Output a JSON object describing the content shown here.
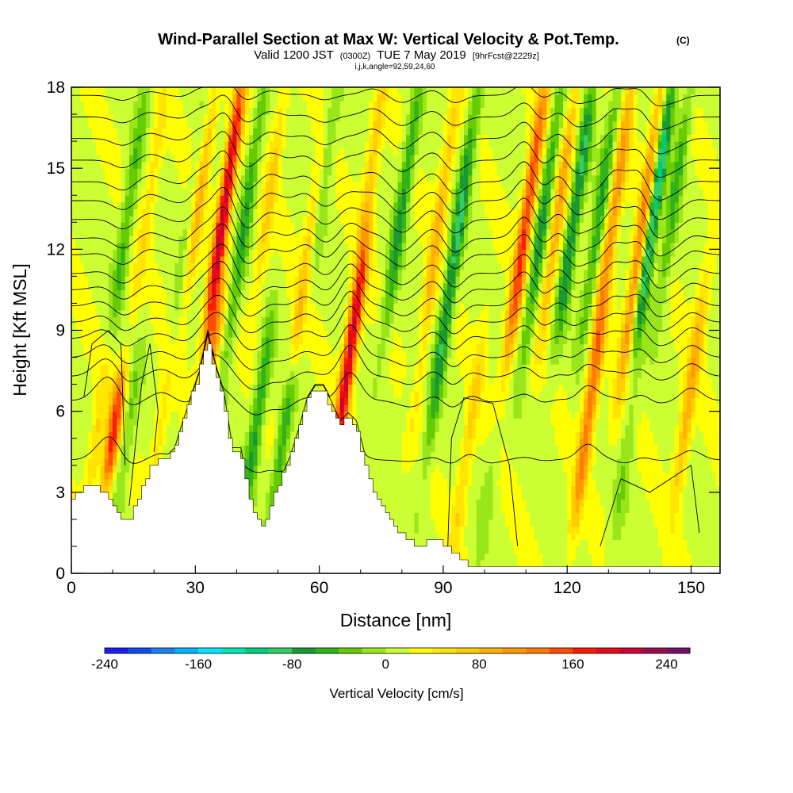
{
  "chart_data": {
    "type": "heatmap",
    "title": "Wind-Parallel Section at Max W: Vertical Velocity & Pot.Temp.",
    "title_mark": "(C)",
    "subtitle_prefix": "Valid 1200 JST",
    "subtitle_zulu": "(0300Z)",
    "subtitle_date": "TUE 7 May 2019",
    "subtitle_forecast": "[9hrFcst@2229z]",
    "grid_info": "i,j,k,angle=92,59,24,60",
    "xlabel": "Distance [nm]",
    "ylabel": "Height [Kft MSL]",
    "xlim": [
      0,
      157
    ],
    "ylim": [
      0,
      18
    ],
    "x_ticks": [
      0,
      30,
      60,
      90,
      120,
      150
    ],
    "y_ticks": [
      0,
      3,
      6,
      9,
      12,
      15,
      18
    ],
    "x_tick_labels": [
      "0",
      "30",
      "60",
      "90",
      "120",
      "150"
    ],
    "y_tick_labels": [
      "0",
      "3",
      "6",
      "9",
      "12",
      "15",
      "18"
    ],
    "colorbar": {
      "label": "Vertical Velocity [cm/s]",
      "min": -240,
      "max": 260,
      "step": 20,
      "tick_values": [
        -240,
        -160,
        -80,
        0,
        80,
        160,
        240
      ],
      "tick_labels": [
        "-240",
        "-160",
        "-80",
        "0",
        "80",
        "160",
        "240"
      ],
      "colors": [
        "#1a1aff",
        "#0a4df0",
        "#1a80f0",
        "#00b3ff",
        "#00e6ff",
        "#00e6b3",
        "#00cc80",
        "#33cc66",
        "#1a9933",
        "#33b31a",
        "#66cc00",
        "#99e61a",
        "#ccff33",
        "#ffff00",
        "#ffe600",
        "#ffcc00",
        "#ffb300",
        "#ff9900",
        "#ff7a00",
        "#ff4d00",
        "#ff1a00",
        "#e60a1a",
        "#cc0033",
        "#990f4d",
        "#73106b"
      ]
    },
    "updrafts": [
      {
        "x": 7.0,
        "zbot": 3.0,
        "ztop": 9.0,
        "w": 70
      },
      {
        "x": 10.2,
        "zbot": 3.5,
        "ztop": 7.0,
        "w": 150
      },
      {
        "x": 19.0,
        "zbot": 10.0,
        "ztop": 18.0,
        "w": 40
      },
      {
        "x": 22.0,
        "zbot": 3.5,
        "ztop": 8.0,
        "w": 50
      },
      {
        "x": 31.0,
        "zbot": 10.0,
        "ztop": 18.0,
        "w": 80
      },
      {
        "x": 34.0,
        "zbot": 6.0,
        "ztop": 10.0,
        "w": 100
      },
      {
        "x": 37.0,
        "zbot": 9.0,
        "ztop": 18.0,
        "w": 200
      },
      {
        "x": 48.0,
        "zbot": 10.0,
        "ztop": 18.0,
        "w": 50
      },
      {
        "x": 57.0,
        "zbot": 8.0,
        "ztop": 15.0,
        "w": 70
      },
      {
        "x": 67.5,
        "zbot": 4.5,
        "ztop": 12.0,
        "w": 200
      },
      {
        "x": 73.0,
        "zbot": 13.0,
        "ztop": 18.0,
        "w": 60
      },
      {
        "x": 88.0,
        "zbot": 6.0,
        "ztop": 18.0,
        "w": 70
      },
      {
        "x": 96.0,
        "zbot": 0.5,
        "ztop": 9.0,
        "w": 50
      },
      {
        "x": 110.0,
        "zbot": 8.0,
        "ztop": 18.0,
        "w": 150
      },
      {
        "x": 118.0,
        "zbot": 9.0,
        "ztop": 18.0,
        "w": 80
      },
      {
        "x": 125.0,
        "zbot": 2.0,
        "ztop": 9.0,
        "w": 110
      },
      {
        "x": 131.0,
        "zbot": 8.0,
        "ztop": 18.0,
        "w": 100
      },
      {
        "x": 138.0,
        "zbot": 7.0,
        "ztop": 18.0,
        "w": 120
      },
      {
        "x": 150.0,
        "zbot": 3.0,
        "ztop": 11.0,
        "w": 80
      }
    ],
    "downdrafts": [
      {
        "x": 12.5,
        "zbot": 6.0,
        "ztop": 18.0,
        "w": -60
      },
      {
        "x": 13.5,
        "zbot": 2.0,
        "ztop": 8.0,
        "w": -40
      },
      {
        "x": 28.0,
        "zbot": 6.0,
        "ztop": 18.0,
        "w": -35
      },
      {
        "x": 42.0,
        "zbot": 8.0,
        "ztop": 18.0,
        "w": -70
      },
      {
        "x": 45.0,
        "zbot": 2.5,
        "ztop": 9.0,
        "w": -80
      },
      {
        "x": 51.0,
        "zbot": 2.5,
        "ztop": 7.0,
        "w": -70
      },
      {
        "x": 61.0,
        "zbot": 11.0,
        "ztop": 18.0,
        "w": -50
      },
      {
        "x": 80.0,
        "zbot": 9.0,
        "ztop": 18.0,
        "w": -80
      },
      {
        "x": 83.0,
        "zbot": 6.0,
        "ztop": 9.0,
        "w": -40
      },
      {
        "x": 92.5,
        "zbot": 5.0,
        "ztop": 18.0,
        "w": -100
      },
      {
        "x": 101.0,
        "zbot": 0.5,
        "ztop": 6.0,
        "w": -25
      },
      {
        "x": 114.0,
        "zbot": 8.0,
        "ztop": 18.0,
        "w": -80
      },
      {
        "x": 122.0,
        "zbot": 9.0,
        "ztop": 18.0,
        "w": -100
      },
      {
        "x": 128.0,
        "zbot": 9.0,
        "ztop": 18.0,
        "w": -70
      },
      {
        "x": 134.0,
        "zbot": 1.0,
        "ztop": 7.0,
        "w": -30
      },
      {
        "x": 141.0,
        "zbot": 9.0,
        "ztop": 18.0,
        "w": -140
      },
      {
        "x": 146.0,
        "zbot": 10.0,
        "ztop": 18.0,
        "w": -60
      }
    ],
    "background_w": 25,
    "terrain": {
      "x": [
        0,
        3,
        6,
        9,
        11,
        13,
        15,
        17,
        19,
        21,
        23,
        25,
        27,
        29,
        31,
        33,
        35,
        37,
        38,
        39,
        41,
        43,
        45,
        47,
        49,
        51,
        53,
        55,
        57,
        59,
        61,
        63,
        65,
        67,
        69,
        71,
        73,
        75,
        77,
        79,
        81,
        83,
        85,
        87,
        89,
        91,
        93,
        95,
        97,
        99,
        157
      ],
      "height": [
        2.6,
        3.2,
        3.2,
        3.0,
        2.3,
        1.8,
        2.2,
        3.0,
        3.8,
        4.2,
        4.2,
        4.5,
        5.5,
        6.4,
        7.3,
        8.7,
        7.5,
        6.5,
        5.5,
        4.5,
        4.5,
        3.0,
        2.0,
        1.8,
        2.8,
        3.5,
        4.2,
        5.2,
        6.3,
        6.8,
        6.8,
        6.2,
        5.5,
        5.8,
        5.5,
        4.3,
        3.2,
        2.5,
        2.0,
        1.7,
        1.3,
        1.1,
        1.0,
        1.3,
        1.3,
        1.0,
        0.8,
        0.5,
        0.3,
        0.3,
        0.3
      ]
    },
    "theta_contours": [
      {
        "base": 4.2,
        "label": "?"
      },
      {
        "base": 6.4,
        "label": "?"
      },
      {
        "base": 7.3,
        "label": "?"
      },
      {
        "base": 8.0,
        "label": "?"
      },
      {
        "base": 8.7,
        "label": "?"
      },
      {
        "base": 9.3,
        "label": "?"
      },
      {
        "base": 9.9,
        "label": "?"
      },
      {
        "base": 10.5,
        "label": "?"
      },
      {
        "base": 11.1,
        "label": "?"
      },
      {
        "base": 11.8,
        "label": "?"
      },
      {
        "base": 12.4,
        "label": "?"
      },
      {
        "base": 13.1,
        "label": "?"
      },
      {
        "base": 13.8,
        "label": "?"
      },
      {
        "base": 14.5,
        "label": "?"
      },
      {
        "base": 15.3,
        "label": "?"
      },
      {
        "base": 16.1,
        "label": "?"
      },
      {
        "base": 16.9,
        "label": "?"
      },
      {
        "base": 17.7,
        "label": "?"
      }
    ],
    "w_zero_contours": [
      {
        "points": [
          [
            3,
            6.5
          ],
          [
            5,
            8.5
          ],
          [
            9,
            9.0
          ],
          [
            12,
            8.5
          ],
          [
            13,
            4.0
          ]
        ]
      },
      {
        "points": [
          [
            14,
            2.5
          ],
          [
            17,
            7.0
          ],
          [
            19,
            8.5
          ],
          [
            21,
            6.0
          ],
          [
            20,
            4.5
          ]
        ]
      },
      {
        "points": [
          [
            91,
            0.5
          ],
          [
            92,
            5.0
          ],
          [
            95,
            6.5
          ],
          [
            102,
            6.3
          ],
          [
            106,
            4.0
          ],
          [
            108,
            1.0
          ]
        ]
      },
      {
        "points": [
          [
            128,
            1.0
          ],
          [
            133,
            3.5
          ],
          [
            140,
            3.0
          ],
          [
            150,
            4.0
          ],
          [
            152,
            1.5
          ]
        ]
      }
    ]
  }
}
